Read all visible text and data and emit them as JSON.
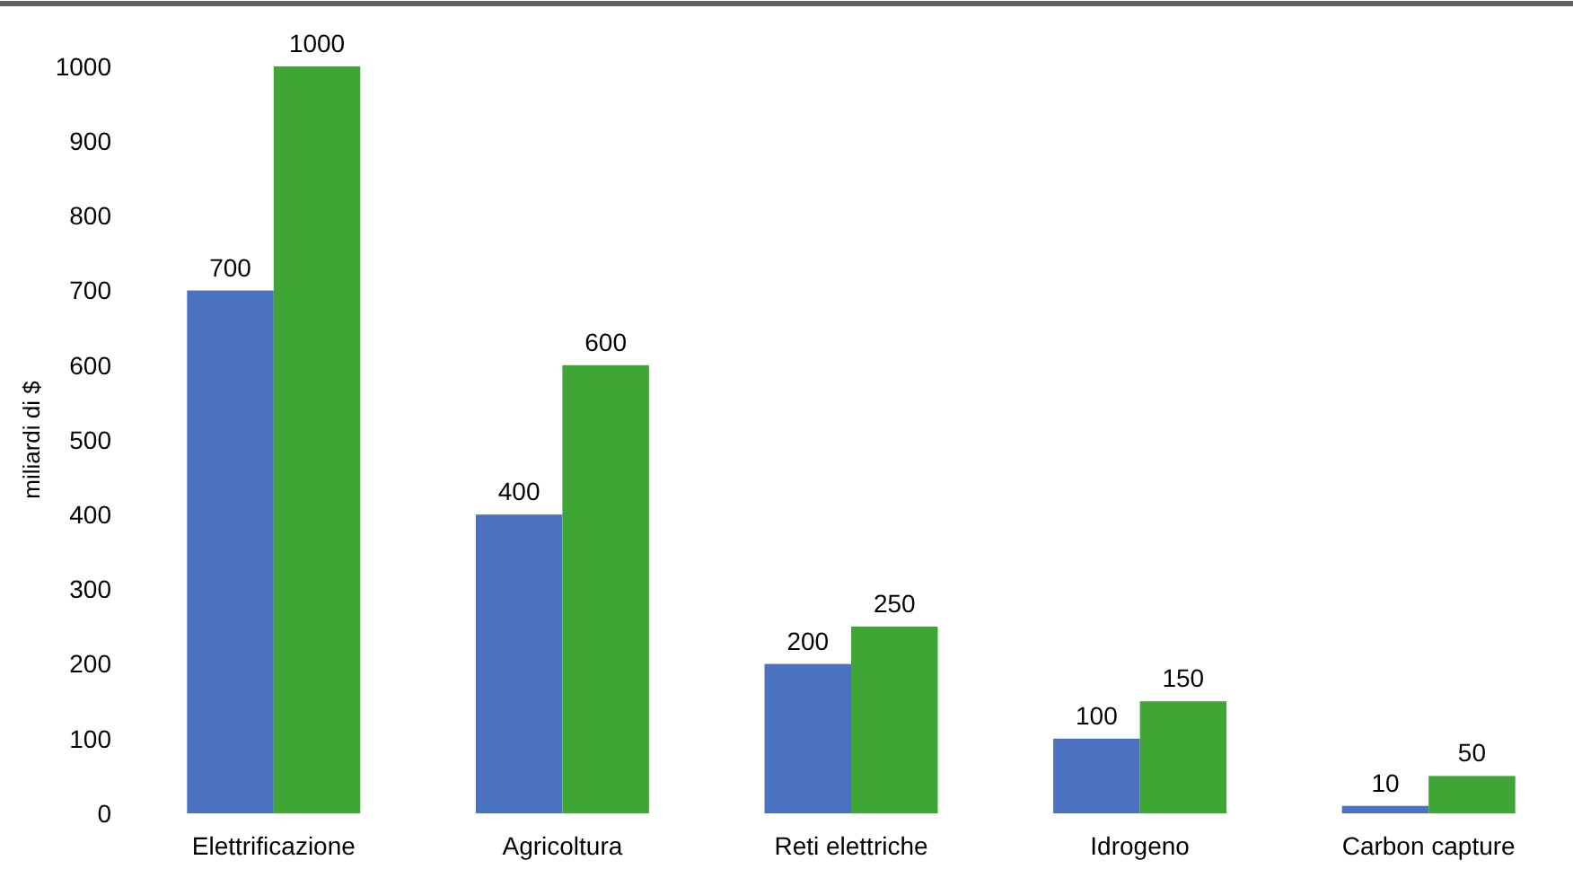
{
  "chart_data": {
    "type": "bar",
    "ylabel": "miliardi di $",
    "categories": [
      "Elettrificazione",
      "Agricoltura",
      "Reti elettriche",
      "Idrogeno",
      "Carbon capture"
    ],
    "series": [
      {
        "color": "#4a72c0",
        "values": [
          700,
          400,
          200,
          100,
          10
        ]
      },
      {
        "color": "#3fa535",
        "values": [
          1000,
          600,
          250,
          150,
          50
        ]
      }
    ],
    "ylim": [
      0,
      1000
    ],
    "yticks": [
      0,
      100,
      200,
      300,
      400,
      500,
      600,
      700,
      800,
      900,
      1000
    ],
    "grid": false,
    "data_labels": true
  }
}
